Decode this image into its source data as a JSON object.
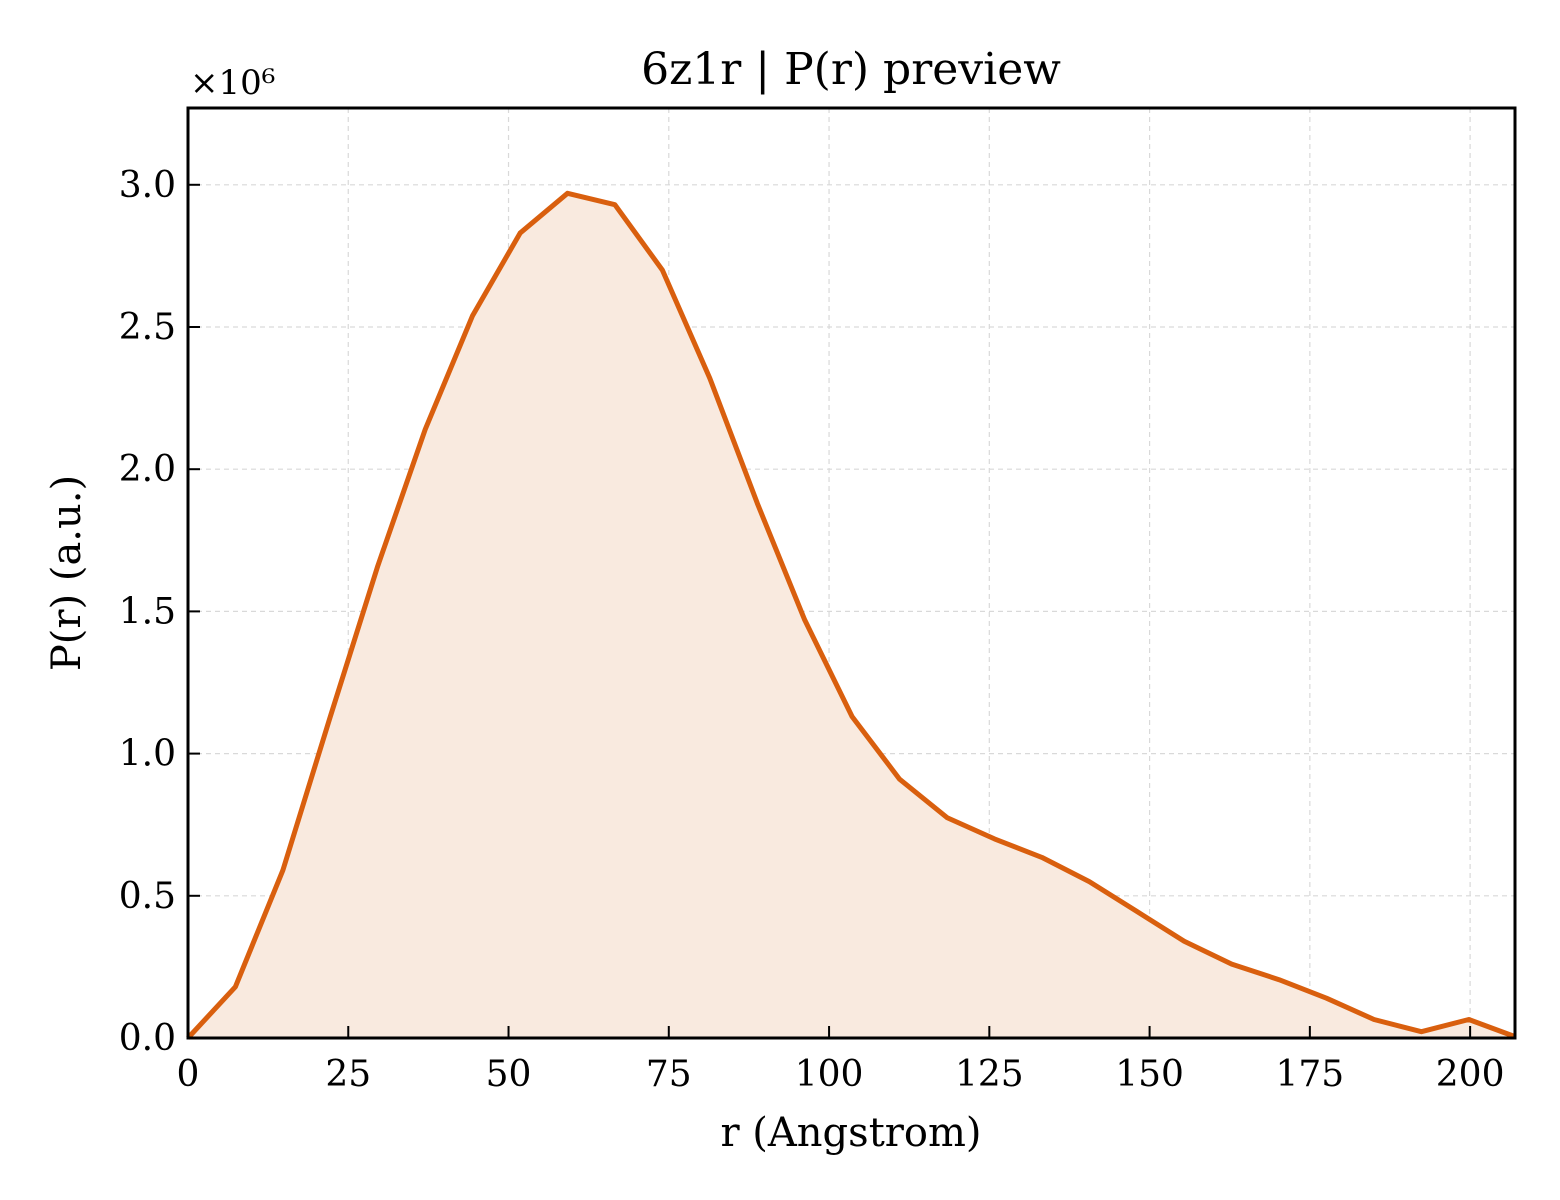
{
  "chart_data": {
    "type": "area",
    "title": "6z1r | P(r) preview",
    "xlabel": "r (Angstrom)",
    "ylabel": "P(r) (a.u.)",
    "y_multiplier_label": "×10⁶",
    "y_scale": 1000000,
    "xlim": [
      0,
      207
    ],
    "ylim": [
      0,
      3270000
    ],
    "x_ticks": [
      0,
      25,
      50,
      75,
      100,
      125,
      150,
      175,
      200
    ],
    "y_ticks": [
      0.0,
      0.5,
      1.0,
      1.5,
      2.0,
      2.5,
      3.0
    ],
    "y_tick_labels": [
      "0.0",
      "0.5",
      "1.0",
      "1.5",
      "2.0",
      "2.5",
      "3.0"
    ],
    "grid": true,
    "colors": {
      "line": "#d95f0e",
      "fill": "#f9eadf",
      "grid": "#d9d9d9"
    },
    "series": [
      {
        "x": [
          0,
          7.4,
          14.8,
          22.2,
          29.6,
          37.0,
          44.4,
          51.8,
          59.2,
          66.6,
          74.0,
          81.4,
          88.8,
          96.2,
          103.6,
          111.0,
          118.4,
          125.8,
          133.2,
          140.6,
          148.0,
          155.4,
          162.8,
          170.2,
          177.6,
          185.0,
          192.4,
          199.8,
          207.0
        ],
        "y": [
          0,
          180000,
          590000,
          1130000,
          1660000,
          2140000,
          2540000,
          2830000,
          2970000,
          2930000,
          2700000,
          2320000,
          1880000,
          1470000,
          1130000,
          910000,
          775000,
          700000,
          635000,
          550000,
          445000,
          340000,
          260000,
          205000,
          140000,
          65000,
          22000,
          65000,
          5000
        ]
      }
    ]
  }
}
